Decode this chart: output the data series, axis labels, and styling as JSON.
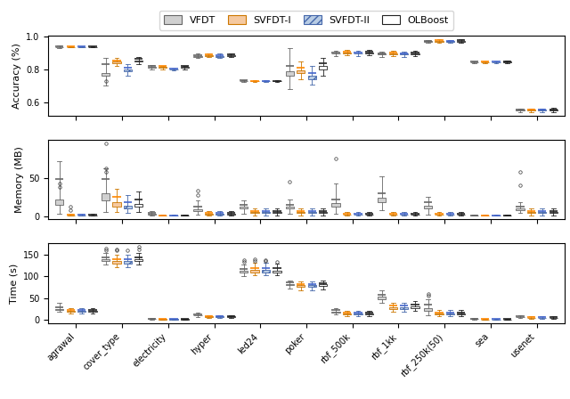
{
  "datasets": [
    "agrawal",
    "cover_type",
    "electricity",
    "hyper",
    "led24",
    "poker",
    "rbf_500k",
    "rbf_1kk",
    "rbf_250k(50)",
    "sea",
    "usenet"
  ],
  "methods": [
    "VFDT",
    "SVFDT-I",
    "SVFDT-II",
    "OLBoost"
  ],
  "face_colors": [
    "#d0d0d0",
    "#f5c9a0",
    "#b8cce4",
    "#ffffff"
  ],
  "edge_colors": [
    "#666666",
    "#cc7700",
    "#4466aa",
    "#222222"
  ],
  "median_colors": [
    "#666666",
    "#ff8800",
    "#4466cc",
    "#222222"
  ],
  "hatches": [
    "",
    "",
    "////",
    ""
  ],
  "accuracy": {
    "agrawal": [
      [
        0.93,
        0.935,
        0.94,
        0.937,
        0.945,
        []
      ],
      [
        0.933,
        0.937,
        0.939,
        0.938,
        0.942,
        []
      ],
      [
        0.933,
        0.937,
        0.939,
        0.938,
        0.942,
        []
      ],
      [
        0.933,
        0.937,
        0.939,
        0.938,
        0.942,
        []
      ]
    ],
    "cover_type": [
      [
        0.7,
        0.76,
        0.83,
        0.78,
        0.87,
        [
          0.73
        ]
      ],
      [
        0.82,
        0.84,
        0.855,
        0.848,
        0.87,
        []
      ],
      [
        0.76,
        0.79,
        0.81,
        0.8,
        0.83,
        []
      ],
      [
        0.83,
        0.85,
        0.865,
        0.855,
        0.875,
        []
      ]
    ],
    "electricity": [
      [
        0.798,
        0.81,
        0.82,
        0.815,
        0.825,
        []
      ],
      [
        0.8,
        0.812,
        0.82,
        0.816,
        0.824,
        []
      ],
      [
        0.795,
        0.8,
        0.803,
        0.802,
        0.807,
        []
      ],
      [
        0.8,
        0.812,
        0.82,
        0.816,
        0.824,
        []
      ]
    ],
    "hyper": [
      [
        0.87,
        0.878,
        0.888,
        0.882,
        0.895,
        []
      ],
      [
        0.875,
        0.882,
        0.89,
        0.886,
        0.897,
        []
      ],
      [
        0.87,
        0.878,
        0.888,
        0.882,
        0.895,
        []
      ],
      [
        0.875,
        0.882,
        0.89,
        0.886,
        0.897,
        []
      ]
    ],
    "led24": [
      [
        0.726,
        0.729,
        0.732,
        0.73,
        0.735,
        []
      ],
      [
        0.724,
        0.727,
        0.73,
        0.728,
        0.733,
        []
      ],
      [
        0.724,
        0.727,
        0.73,
        0.728,
        0.733,
        []
      ],
      [
        0.725,
        0.728,
        0.731,
        0.729,
        0.734,
        []
      ]
    ],
    "poker": [
      [
        0.68,
        0.76,
        0.82,
        0.79,
        0.93,
        []
      ],
      [
        0.74,
        0.78,
        0.81,
        0.795,
        0.85,
        []
      ],
      [
        0.71,
        0.74,
        0.78,
        0.76,
        0.82,
        []
      ],
      [
        0.76,
        0.8,
        0.84,
        0.82,
        0.87,
        []
      ]
    ],
    "rbf_500k": [
      [
        0.88,
        0.895,
        0.905,
        0.9,
        0.915,
        []
      ],
      [
        0.885,
        0.9,
        0.908,
        0.904,
        0.918,
        []
      ],
      [
        0.882,
        0.895,
        0.905,
        0.9,
        0.915,
        []
      ],
      [
        0.885,
        0.9,
        0.908,
        0.904,
        0.918,
        []
      ]
    ],
    "rbf_1kk": [
      [
        0.878,
        0.892,
        0.9,
        0.896,
        0.91,
        []
      ],
      [
        0.88,
        0.894,
        0.902,
        0.898,
        0.912,
        []
      ],
      [
        0.878,
        0.892,
        0.9,
        0.896,
        0.91,
        []
      ],
      [
        0.88,
        0.894,
        0.902,
        0.898,
        0.912,
        []
      ]
    ],
    "rbf_250k(50)": [
      [
        0.96,
        0.968,
        0.975,
        0.972,
        0.98,
        []
      ],
      [
        0.963,
        0.97,
        0.977,
        0.974,
        0.982,
        []
      ],
      [
        0.96,
        0.968,
        0.975,
        0.972,
        0.98,
        []
      ],
      [
        0.963,
        0.97,
        0.977,
        0.974,
        0.982,
        []
      ]
    ],
    "sea": [
      [
        0.838,
        0.843,
        0.847,
        0.845,
        0.851,
        []
      ],
      [
        0.838,
        0.843,
        0.847,
        0.845,
        0.851,
        []
      ],
      [
        0.838,
        0.843,
        0.847,
        0.845,
        0.851,
        []
      ],
      [
        0.839,
        0.844,
        0.848,
        0.846,
        0.852,
        []
      ]
    ],
    "usenet": [
      [
        0.54,
        0.55,
        0.557,
        0.553,
        0.563,
        []
      ],
      [
        0.54,
        0.55,
        0.557,
        0.553,
        0.563,
        []
      ],
      [
        0.54,
        0.55,
        0.557,
        0.553,
        0.563,
        []
      ],
      [
        0.541,
        0.551,
        0.558,
        0.554,
        0.564,
        []
      ]
    ]
  },
  "memory": {
    "agrawal": [
      [
        3,
        15,
        48,
        22,
        72,
        [
          38,
          42
        ]
      ],
      [
        0.3,
        0.8,
        1.5,
        1.0,
        3.5,
        [
          8,
          12
        ]
      ],
      [
        0.3,
        0.8,
        1.5,
        1.0,
        3.5,
        []
      ],
      [
        0.3,
        0.8,
        1.5,
        1.0,
        3.5,
        []
      ]
    ],
    "cover_type": [
      [
        5,
        20,
        48,
        30,
        62,
        [
          58,
          62,
          95
        ]
      ],
      [
        5,
        12,
        25,
        18,
        35,
        []
      ],
      [
        4,
        10,
        18,
        14,
        28,
        []
      ],
      [
        5,
        12,
        22,
        16,
        32,
        []
      ]
    ],
    "electricity": [
      [
        0.5,
        2,
        4,
        3,
        7,
        []
      ],
      [
        0.3,
        0.5,
        1,
        0.7,
        2,
        []
      ],
      [
        0.3,
        0.5,
        1,
        0.7,
        2,
        []
      ],
      [
        0.3,
        0.5,
        1,
        0.7,
        2,
        []
      ]
    ],
    "hyper": [
      [
        2,
        6,
        12,
        9,
        20,
        [
          28,
          33
        ]
      ],
      [
        0.5,
        1.5,
        4,
        2.5,
        7,
        []
      ],
      [
        0.5,
        1.5,
        4,
        2.5,
        7,
        []
      ],
      [
        0.5,
        1.5,
        4,
        2.5,
        7,
        []
      ]
    ],
    "led24": [
      [
        3,
        10,
        15,
        12,
        20,
        []
      ],
      [
        1,
        4,
        7,
        5,
        10,
        []
      ],
      [
        1,
        4,
        7,
        5,
        10,
        []
      ],
      [
        1,
        4,
        7,
        5,
        10,
        []
      ]
    ],
    "poker": [
      [
        3,
        10,
        15,
        12,
        22,
        [
          45
        ]
      ],
      [
        1,
        4,
        7,
        5,
        10,
        []
      ],
      [
        1,
        4,
        7,
        5,
        10,
        []
      ],
      [
        1,
        4,
        7,
        5,
        10,
        []
      ]
    ],
    "rbf_500k": [
      [
        3,
        12,
        22,
        17,
        42,
        [
          75
        ]
      ],
      [
        0.5,
        1.5,
        3,
        2,
        5,
        []
      ],
      [
        0.5,
        1.5,
        3,
        2,
        5,
        []
      ],
      [
        0.5,
        1.5,
        3,
        2,
        5,
        []
      ]
    ],
    "rbf_1kk": [
      [
        8,
        18,
        30,
        24,
        52,
        []
      ],
      [
        0.5,
        1.5,
        3,
        2,
        5,
        []
      ],
      [
        0.5,
        1.5,
        3,
        2,
        5,
        []
      ],
      [
        0.5,
        1.5,
        3,
        2,
        5,
        []
      ]
    ],
    "rbf_250k(50)": [
      [
        2,
        10,
        18,
        14,
        25,
        []
      ],
      [
        0.5,
        1.5,
        3,
        2,
        5,
        []
      ],
      [
        0.5,
        1.5,
        3,
        2,
        5,
        []
      ],
      [
        0.5,
        1.5,
        3,
        2,
        5,
        []
      ]
    ],
    "sea": [
      [
        0.3,
        0.5,
        0.8,
        0.6,
        1.5,
        []
      ],
      [
        0.3,
        0.5,
        0.8,
        0.6,
        1.5,
        []
      ],
      [
        0.3,
        0.5,
        0.8,
        0.6,
        1.5,
        []
      ],
      [
        0.3,
        0.5,
        0.8,
        0.6,
        1.5,
        []
      ]
    ],
    "usenet": [
      [
        4,
        8,
        12,
        10,
        18,
        [
          40,
          58
        ]
      ],
      [
        1,
        4,
        7,
        5,
        10,
        []
      ],
      [
        1,
        4,
        7,
        5,
        10,
        []
      ],
      [
        1,
        4,
        7,
        5,
        10,
        []
      ]
    ]
  },
  "time": {
    "agrawal": [
      [
        18,
        22,
        28,
        25,
        38,
        []
      ],
      [
        14,
        18,
        22,
        20,
        26,
        []
      ],
      [
        14,
        18,
        22,
        20,
        26,
        []
      ],
      [
        14,
        18,
        22,
        20,
        26,
        []
      ]
    ],
    "cover_type": [
      [
        128,
        135,
        145,
        140,
        155,
        [
          160,
          165
        ]
      ],
      [
        122,
        130,
        140,
        135,
        150,
        [
          160,
          162
        ]
      ],
      [
        122,
        130,
        140,
        135,
        150,
        [
          160
        ]
      ],
      [
        128,
        135,
        145,
        140,
        155,
        [
          162,
          168
        ]
      ]
    ],
    "electricity": [
      [
        0.5,
        1,
        2,
        1.5,
        3,
        []
      ],
      [
        0.3,
        0.7,
        1.5,
        1,
        2.5,
        []
      ],
      [
        0.3,
        0.7,
        1.5,
        1,
        2.5,
        []
      ],
      [
        0.3,
        0.7,
        1.5,
        1,
        2.5,
        []
      ]
    ],
    "hyper": [
      [
        6,
        10,
        13,
        11,
        17,
        []
      ],
      [
        4,
        7,
        9,
        8,
        11,
        []
      ],
      [
        4,
        7,
        9,
        8,
        11,
        []
      ],
      [
        4,
        7,
        9,
        8,
        11,
        []
      ]
    ],
    "led24": [
      [
        100,
        108,
        118,
        113,
        128,
        [
          133,
          138
        ]
      ],
      [
        103,
        110,
        120,
        115,
        132,
        [
          135,
          140
        ]
      ],
      [
        103,
        110,
        120,
        115,
        132,
        [
          135,
          138
        ]
      ],
      [
        102,
        109,
        119,
        114,
        130,
        [
          134
        ]
      ]
    ],
    "poker": [
      [
        72,
        80,
        86,
        83,
        91,
        []
      ],
      [
        68,
        76,
        83,
        80,
        88,
        []
      ],
      [
        68,
        76,
        83,
        80,
        88,
        []
      ],
      [
        70,
        78,
        85,
        82,
        90,
        []
      ]
    ],
    "rbf_500k": [
      [
        12,
        17,
        22,
        19,
        27,
        []
      ],
      [
        8,
        13,
        17,
        15,
        21,
        []
      ],
      [
        8,
        13,
        17,
        15,
        21,
        []
      ],
      [
        8,
        13,
        17,
        15,
        21,
        []
      ]
    ],
    "rbf_1kk": [
      [
        38,
        48,
        58,
        53,
        68,
        []
      ],
      [
        18,
        25,
        32,
        28,
        40,
        []
      ],
      [
        18,
        25,
        32,
        28,
        40,
        []
      ],
      [
        20,
        27,
        35,
        31,
        43,
        []
      ]
    ],
    "rbf_250k(50)": [
      [
        10,
        20,
        35,
        27,
        48,
        [
          55,
          60
        ]
      ],
      [
        8,
        12,
        17,
        14,
        22,
        []
      ],
      [
        8,
        12,
        17,
        14,
        22,
        []
      ],
      [
        8,
        12,
        17,
        14,
        22,
        []
      ]
    ],
    "sea": [
      [
        0.5,
        1,
        2,
        1.5,
        3,
        []
      ],
      [
        0.3,
        0.5,
        1,
        0.7,
        2,
        []
      ],
      [
        0.3,
        0.5,
        1,
        0.7,
        2,
        []
      ],
      [
        0.3,
        0.5,
        1,
        0.7,
        2,
        []
      ]
    ],
    "usenet": [
      [
        3,
        6,
        8,
        7,
        10,
        []
      ],
      [
        2,
        4,
        6,
        5,
        8,
        []
      ],
      [
        2,
        4,
        6,
        5,
        8,
        []
      ],
      [
        2,
        4,
        6,
        5,
        8,
        []
      ]
    ]
  },
  "tick_fontsize": 7,
  "label_fontsize": 8
}
